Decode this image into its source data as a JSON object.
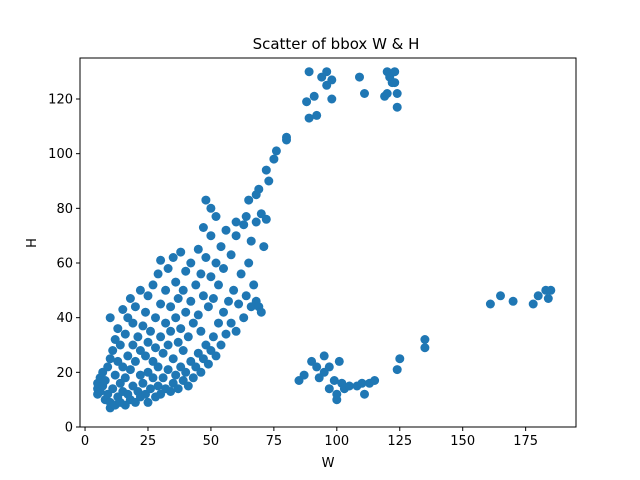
{
  "chart_data": {
    "type": "scatter",
    "title": "Scatter of bbox W & H",
    "xlabel": "W",
    "ylabel": "H",
    "xlim": [
      -2,
      195
    ],
    "ylim": [
      0,
      135
    ],
    "xticks": [
      0,
      25,
      50,
      75,
      100,
      125,
      150,
      175
    ],
    "yticks": [
      0,
      20,
      40,
      60,
      80,
      100,
      120
    ],
    "grid": false,
    "legend": "none",
    "marker_color": "#1f77b4",
    "series": [
      {
        "points": [
          [
            5,
            12
          ],
          [
            5,
            14
          ],
          [
            5,
            16
          ],
          [
            6,
            18
          ],
          [
            6,
            13
          ],
          [
            7,
            15
          ],
          [
            7,
            20
          ],
          [
            8,
            10
          ],
          [
            8,
            17
          ],
          [
            9,
            12
          ],
          [
            9,
            22
          ],
          [
            10,
            7
          ],
          [
            10,
            9
          ],
          [
            10,
            25
          ],
          [
            10,
            40
          ],
          [
            11,
            14
          ],
          [
            11,
            28
          ],
          [
            12,
            8
          ],
          [
            12,
            19
          ],
          [
            12,
            32
          ],
          [
            13,
            11
          ],
          [
            13,
            24
          ],
          [
            13,
            36
          ],
          [
            14,
            9
          ],
          [
            14,
            16
          ],
          [
            14,
            30
          ],
          [
            15,
            13
          ],
          [
            15,
            22
          ],
          [
            15,
            43
          ],
          [
            16,
            8
          ],
          [
            16,
            18
          ],
          [
            16,
            34
          ],
          [
            17,
            12
          ],
          [
            17,
            26
          ],
          [
            17,
            40
          ],
          [
            18,
            10
          ],
          [
            18,
            21
          ],
          [
            18,
            47
          ],
          [
            19,
            15
          ],
          [
            19,
            30
          ],
          [
            19,
            38
          ],
          [
            20,
            9
          ],
          [
            20,
            24
          ],
          [
            20,
            44
          ],
          [
            21,
            13
          ],
          [
            21,
            33
          ],
          [
            22,
            11
          ],
          [
            22,
            19
          ],
          [
            22,
            28
          ],
          [
            22,
            50
          ],
          [
            23,
            16
          ],
          [
            23,
            37
          ],
          [
            24,
            12
          ],
          [
            24,
            26
          ],
          [
            24,
            42
          ],
          [
            25,
            9
          ],
          [
            25,
            20
          ],
          [
            25,
            31
          ],
          [
            25,
            48
          ],
          [
            26,
            14
          ],
          [
            26,
            35
          ],
          [
            27,
            18
          ],
          [
            27,
            24
          ],
          [
            27,
            52
          ],
          [
            28,
            11
          ],
          [
            28,
            29
          ],
          [
            28,
            40
          ],
          [
            29,
            15
          ],
          [
            29,
            22
          ],
          [
            29,
            56
          ],
          [
            30,
            12
          ],
          [
            30,
            33
          ],
          [
            30,
            45
          ],
          [
            30,
            61
          ],
          [
            31,
            18
          ],
          [
            31,
            27
          ],
          [
            32,
            14
          ],
          [
            32,
            38
          ],
          [
            32,
            50
          ],
          [
            33,
            21
          ],
          [
            33,
            30
          ],
          [
            33,
            58
          ],
          [
            34,
            13
          ],
          [
            34,
            35
          ],
          [
            34,
            44
          ],
          [
            35,
            16
          ],
          [
            35,
            25
          ],
          [
            35,
            62
          ],
          [
            36,
            19
          ],
          [
            36,
            40
          ],
          [
            36,
            53
          ],
          [
            37,
            14
          ],
          [
            37,
            31
          ],
          [
            37,
            47
          ],
          [
            38,
            22
          ],
          [
            38,
            36
          ],
          [
            38,
            64
          ],
          [
            39,
            17
          ],
          [
            39,
            28
          ],
          [
            39,
            50
          ],
          [
            40,
            20
          ],
          [
            40,
            42
          ],
          [
            40,
            57
          ],
          [
            41,
            15
          ],
          [
            41,
            33
          ],
          [
            42,
            24
          ],
          [
            42,
            46
          ],
          [
            42,
            60
          ],
          [
            43,
            18
          ],
          [
            43,
            38
          ],
          [
            44,
            22
          ],
          [
            44,
            52
          ],
          [
            45,
            27
          ],
          [
            45,
            41
          ],
          [
            45,
            65
          ],
          [
            46,
            20
          ],
          [
            46,
            35
          ],
          [
            46,
            56
          ],
          [
            47,
            25
          ],
          [
            47,
            48
          ],
          [
            48,
            30
          ],
          [
            48,
            62
          ],
          [
            49,
            23
          ],
          [
            49,
            44
          ],
          [
            50,
            28
          ],
          [
            50,
            55
          ],
          [
            50,
            70
          ],
          [
            51,
            33
          ],
          [
            51,
            47
          ],
          [
            52,
            26
          ],
          [
            52,
            60
          ],
          [
            53,
            38
          ],
          [
            53,
            52
          ],
          [
            54,
            30
          ],
          [
            54,
            66
          ],
          [
            55,
            42
          ],
          [
            55,
            58
          ],
          [
            56,
            34
          ],
          [
            56,
            72
          ],
          [
            57,
            46
          ],
          [
            58,
            38
          ],
          [
            58,
            63
          ],
          [
            59,
            50
          ],
          [
            60,
            35
          ],
          [
            60,
            70
          ],
          [
            61,
            45
          ],
          [
            62,
            56
          ],
          [
            63,
            40
          ],
          [
            63,
            74
          ],
          [
            64,
            48
          ],
          [
            65,
            60
          ],
          [
            66,
            44
          ],
          [
            66,
            68
          ],
          [
            67,
            52
          ],
          [
            68,
            46
          ],
          [
            68,
            75
          ],
          [
            69,
            44
          ],
          [
            70,
            42
          ],
          [
            71,
            66
          ],
          [
            72,
            76
          ],
          [
            65,
            83
          ],
          [
            68,
            85
          ],
          [
            69,
            87
          ],
          [
            64,
            77
          ],
          [
            52,
            77
          ],
          [
            47,
            73
          ],
          [
            48,
            83
          ],
          [
            50,
            80
          ],
          [
            60,
            75
          ],
          [
            70,
            78
          ],
          [
            72,
            94
          ],
          [
            73,
            90
          ],
          [
            75,
            98
          ],
          [
            76,
            101
          ],
          [
            80,
            106
          ],
          [
            80,
            105
          ],
          [
            85,
            17
          ],
          [
            87,
            19
          ],
          [
            88,
            119
          ],
          [
            89,
            130
          ],
          [
            89,
            113
          ],
          [
            90,
            24
          ],
          [
            91,
            121
          ],
          [
            92,
            114
          ],
          [
            92,
            22
          ],
          [
            93,
            18
          ],
          [
            94,
            128
          ],
          [
            95,
            26
          ],
          [
            95,
            20
          ],
          [
            96,
            125
          ],
          [
            96,
            130
          ],
          [
            97,
            22
          ],
          [
            97,
            14
          ],
          [
            98,
            127
          ],
          [
            98,
            120
          ],
          [
            99,
            17
          ],
          [
            100,
            10
          ],
          [
            100,
            12
          ],
          [
            101,
            24
          ],
          [
            102,
            16
          ],
          [
            103,
            14
          ],
          [
            105,
            15
          ],
          [
            108,
            15
          ],
          [
            109,
            128
          ],
          [
            110,
            16
          ],
          [
            111,
            122
          ],
          [
            111,
            12
          ],
          [
            113,
            16
          ],
          [
            115,
            17
          ],
          [
            119,
            121
          ],
          [
            120,
            130
          ],
          [
            120,
            122
          ],
          [
            121,
            128
          ],
          [
            122,
            126
          ],
          [
            123,
            130
          ],
          [
            123,
            126
          ],
          [
            124,
            122
          ],
          [
            124,
            117
          ],
          [
            124,
            21
          ],
          [
            125,
            25
          ],
          [
            135,
            32
          ],
          [
            135,
            29
          ],
          [
            161,
            45
          ],
          [
            165,
            48
          ],
          [
            170,
            46
          ],
          [
            178,
            45
          ],
          [
            180,
            48
          ],
          [
            183,
            50
          ],
          [
            184,
            47
          ],
          [
            185,
            50
          ]
        ]
      }
    ]
  }
}
